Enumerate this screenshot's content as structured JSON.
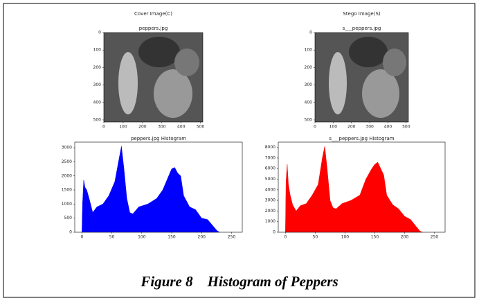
{
  "images": [
    {
      "heading": "Cover Image(C)",
      "title": "peppers.jpg",
      "xlim": [
        0,
        512
      ],
      "ylim": [
        0,
        512
      ],
      "xticks": [
        0,
        100,
        200,
        300,
        400,
        500
      ],
      "yticks": [
        0,
        100,
        200,
        300,
        400,
        500
      ]
    },
    {
      "heading": "Stego Image(S)",
      "title": "s___peppers.jpg",
      "xlim": [
        0,
        512
      ],
      "ylim": [
        0,
        512
      ],
      "xticks": [
        0,
        100,
        200,
        300,
        400,
        500
      ],
      "yticks": [
        0,
        100,
        200,
        300,
        400,
        500
      ]
    }
  ],
  "chart_data": [
    {
      "type": "histogram",
      "title": "peppers.jpg Histogram",
      "color": "#0000ff",
      "x": [
        0,
        1,
        3,
        5,
        8,
        12,
        18,
        25,
        35,
        45,
        55,
        62,
        66,
        70,
        75,
        80,
        85,
        95,
        110,
        125,
        135,
        145,
        150,
        155,
        160,
        165,
        170,
        180,
        190,
        200,
        210,
        220,
        226,
        230
      ],
      "values": [
        0,
        1000,
        1850,
        1600,
        1500,
        1200,
        700,
        900,
        1000,
        1300,
        1800,
        2600,
        3050,
        2300,
        1200,
        700,
        650,
        900,
        1000,
        1200,
        1500,
        2000,
        2250,
        2300,
        2100,
        2000,
        1300,
        900,
        800,
        500,
        450,
        200,
        50,
        0
      ],
      "xlim": [
        -12,
        268
      ],
      "xticks": [
        0,
        50,
        100,
        150,
        200,
        250
      ],
      "ylim": [
        0,
        3200
      ],
      "yticks": [
        0,
        500,
        1000,
        1500,
        2000,
        2500,
        3000
      ]
    },
    {
      "type": "histogram",
      "title": "s___peppers.jpg Histogram",
      "color": "#ff0000",
      "x": [
        0,
        1,
        3,
        5,
        8,
        12,
        18,
        25,
        35,
        45,
        55,
        62,
        66,
        70,
        75,
        80,
        85,
        95,
        110,
        125,
        135,
        145,
        150,
        155,
        160,
        165,
        170,
        180,
        190,
        200,
        210,
        220,
        226,
        230
      ],
      "values": [
        0,
        4700,
        6400,
        4500,
        3500,
        2600,
        2000,
        2500,
        2700,
        3500,
        4500,
        7000,
        8100,
        6000,
        3000,
        2300,
        2200,
        2700,
        3000,
        3500,
        5000,
        6000,
        6400,
        6600,
        6000,
        5400,
        3500,
        2600,
        2200,
        1500,
        1200,
        500,
        100,
        0
      ],
      "xlim": [
        -12,
        268
      ],
      "xticks": [
        0,
        50,
        100,
        150,
        200,
        250
      ],
      "ylim": [
        0,
        8500
      ],
      "yticks": [
        0,
        1000,
        2000,
        3000,
        4000,
        5000,
        6000,
        7000,
        8000
      ]
    }
  ],
  "caption": "Figure 8    Histogram of Peppers"
}
